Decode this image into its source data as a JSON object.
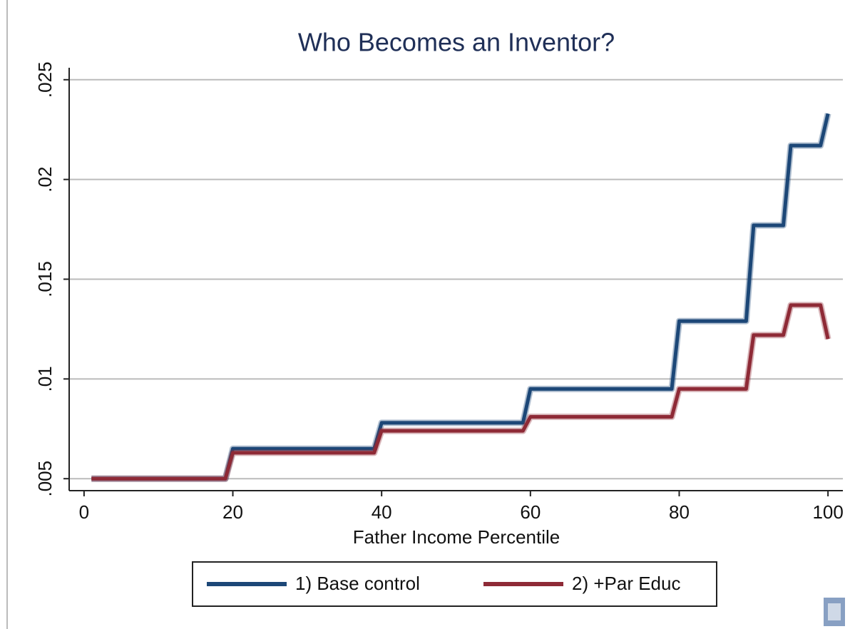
{
  "chart_data": {
    "type": "line",
    "title": "Who Becomes an Inventor?",
    "x_label": "Father Income Percentile",
    "x": [
      1,
      19,
      20,
      39,
      40,
      59,
      60,
      79,
      80,
      89,
      90,
      94,
      95,
      99,
      100
    ],
    "series": [
      {
        "name": "1) Base control",
        "color": "#1c4777",
        "values": [
          0.005,
          0.005,
          0.0065,
          0.0065,
          0.0078,
          0.0078,
          0.0095,
          0.0095,
          0.0129,
          0.0129,
          0.0177,
          0.0177,
          0.0217,
          0.0217,
          0.0233
        ]
      },
      {
        "name": "2) +Par Educ",
        "color": "#8e2a36",
        "values": [
          0.005,
          0.005,
          0.0063,
          0.0063,
          0.0074,
          0.0074,
          0.0081,
          0.0081,
          0.0095,
          0.0095,
          0.0122,
          0.0122,
          0.0137,
          0.0137,
          0.012
        ]
      }
    ],
    "xlim": [
      -2,
      102
    ],
    "xticks": [
      0,
      20,
      40,
      60,
      80,
      100
    ],
    "ylim": [
      0.0044,
      0.0256
    ],
    "yticks": [
      {
        "value": 0.005,
        "label": ".005"
      },
      {
        "value": 0.01,
        "label": ".01"
      },
      {
        "value": 0.015,
        "label": ".015"
      },
      {
        "value": 0.02,
        "label": ".02"
      },
      {
        "value": 0.025,
        "label": ".025"
      }
    ],
    "grid": true
  }
}
